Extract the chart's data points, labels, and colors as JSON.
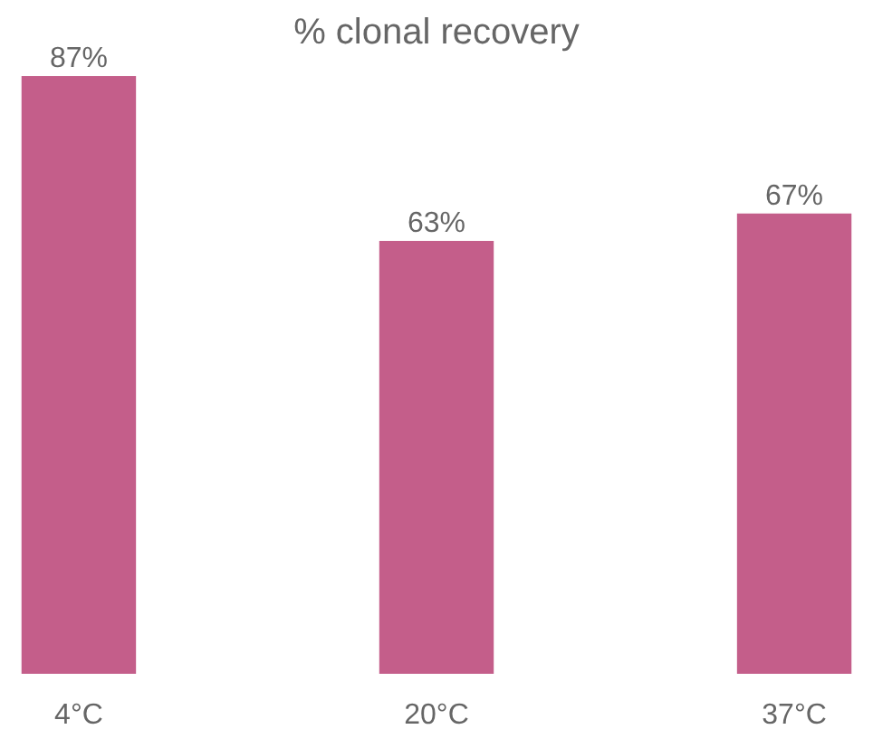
{
  "chart_data": {
    "type": "bar",
    "title": "% clonal recovery",
    "categories": [
      "4°C",
      "20°C",
      "37°C"
    ],
    "values": [
      87,
      63,
      67
    ],
    "value_labels": [
      "87%",
      "63%",
      "67%"
    ],
    "color": "#c45e8a"
  }
}
